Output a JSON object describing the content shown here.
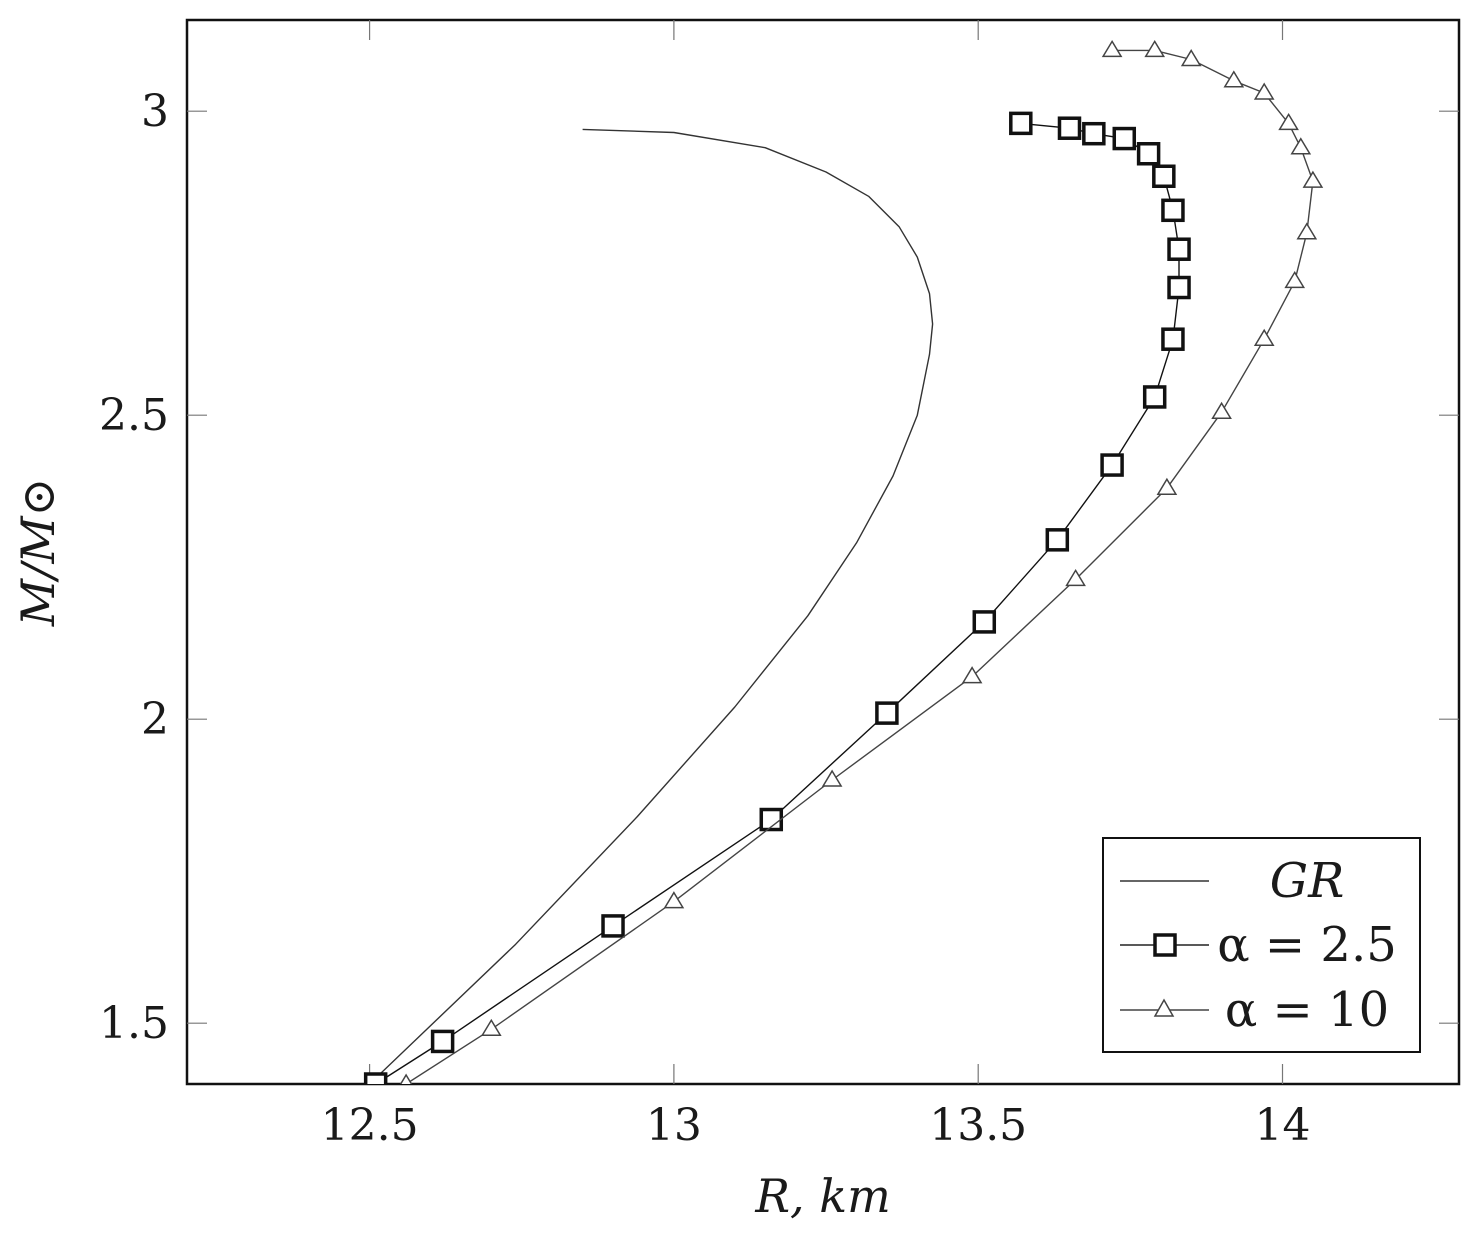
{
  "chart_data": {
    "type": "line",
    "xlabel": "R, km",
    "ylabel": "M/M⊙",
    "xlim": [
      12.2,
      14.29
    ],
    "ylim": [
      1.4,
      3.15
    ],
    "xticks": [
      12.5,
      13,
      13.5,
      14
    ],
    "yticks": [
      1.5,
      2,
      2.5,
      3
    ],
    "xtick_labels": [
      "12.5",
      "13",
      "13.5",
      "14"
    ],
    "ytick_labels": [
      "1.5",
      "2",
      "2.5",
      "3"
    ],
    "grid": false,
    "legend_position": "bottom-right",
    "series": [
      {
        "name": "GR",
        "marker": "none",
        "color": "#333333",
        "x": [
          12.5,
          12.74,
          12.94,
          13.1,
          13.22,
          13.3,
          13.36,
          13.4,
          13.42,
          13.425,
          13.42,
          13.4,
          13.37,
          13.32,
          13.25,
          13.15,
          13.0,
          12.85
        ],
        "y": [
          1.4,
          1.63,
          1.84,
          2.02,
          2.17,
          2.29,
          2.4,
          2.5,
          2.6,
          2.65,
          2.7,
          2.76,
          2.81,
          2.86,
          2.9,
          2.94,
          2.965,
          2.97
        ]
      },
      {
        "name": "α = 2.5",
        "marker": "square",
        "color": "#111111",
        "x": [
          12.51,
          12.62,
          12.9,
          13.16,
          13.35,
          13.51,
          13.63,
          13.72,
          13.79,
          13.82,
          13.83,
          13.83,
          13.82,
          13.805,
          13.78,
          13.74,
          13.69,
          13.65,
          13.57
        ],
        "y": [
          1.4,
          1.47,
          1.66,
          1.835,
          2.01,
          2.16,
          2.295,
          2.418,
          2.53,
          2.625,
          2.71,
          2.773,
          2.837,
          2.893,
          2.93,
          2.955,
          2.963,
          2.972,
          2.98
        ]
      },
      {
        "name": "α = 10",
        "marker": "triangle",
        "color": "#444444",
        "x": [
          12.56,
          12.7,
          13.0,
          13.26,
          13.49,
          13.66,
          13.81,
          13.9,
          13.97,
          14.02,
          14.04,
          14.05,
          14.03,
          14.01,
          13.97,
          13.92,
          13.85,
          13.79,
          13.72
        ],
        "y": [
          1.4,
          1.49,
          1.7,
          1.9,
          2.07,
          2.23,
          2.38,
          2.505,
          2.625,
          2.72,
          2.8,
          2.885,
          2.94,
          2.98,
          3.03,
          3.05,
          3.085,
          3.1,
          3.1
        ]
      }
    ]
  }
}
